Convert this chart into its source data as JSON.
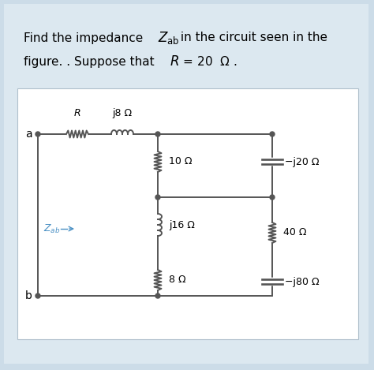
{
  "bg_outer": "#ccdce8",
  "bg_panel": "#dce8f0",
  "bg_circuit": "#ffffff",
  "text_color": "#000000",
  "zab_color": "#4a90c4",
  "circuit_color": "#555555",
  "figsize": [
    4.74,
    4.69
  ],
  "dpi": 100,
  "label_a": "a",
  "label_b": "b",
  "label_R": "R",
  "label_j8": "j8 Ω",
  "label_10": "10 Ω",
  "label_j16": "j16 Ω",
  "label_8": "8 Ω",
  "label_neg_j20": "−j20 Ω",
  "label_40": "40 Ω",
  "label_neg_j80": "−j80 Ω"
}
